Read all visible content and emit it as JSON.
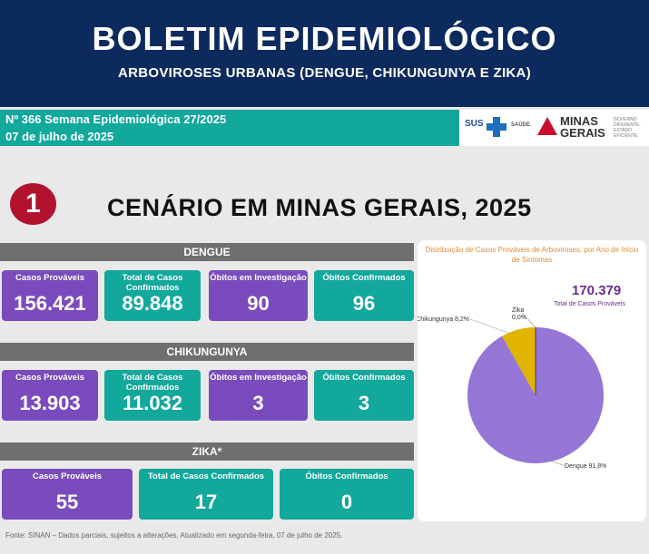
{
  "header": {
    "title": "BOLETIM EPIDEMIOLÓGICO",
    "subtitle": "ARBOVIROSES URBANAS (DENGUE, CHIKUNGUNYA E ZIKA)"
  },
  "issue": {
    "line1": "Nº 366 Semana Epidemiológica 27/2025",
    "line2": "07 de julho de 2025"
  },
  "logos": {
    "sus": "SUS",
    "saude": "SAÚDE",
    "minas": "MINAS",
    "gerais": "GERAIS",
    "tagline": "GOVERNO DIFERENTE. ESTADO EFICIENTE."
  },
  "section": {
    "number": "1",
    "title": "CENÁRIO EM MINAS GERAIS, 2025"
  },
  "dengue": {
    "title": "DENGUE",
    "cards": [
      {
        "label": "Casos Prováveis",
        "value": "156.421"
      },
      {
        "label": "Total de Casos Confirmados",
        "value": "89.848"
      },
      {
        "label": "Óbitos em Investigação",
        "value": "90"
      },
      {
        "label": "Óbitos Confirmados",
        "value": "96"
      }
    ]
  },
  "chik": {
    "title": "CHIKUNGUNYA",
    "cards": [
      {
        "label": "Casos Prováveis",
        "value": "13.903"
      },
      {
        "label": "Total de Casos Confirmados",
        "value": "11.032"
      },
      {
        "label": "Óbitos em Investigação",
        "value": "3"
      },
      {
        "label": "Óbitos Confirmados",
        "value": "3"
      }
    ]
  },
  "zika": {
    "title": "ZIKA*",
    "cards": [
      {
        "label": "Casos Prováveis",
        "value": "55"
      },
      {
        "label": "Total de Casos Confirmados",
        "value": "17"
      },
      {
        "label": "Óbitos Confirmados",
        "value": "0"
      }
    ]
  },
  "chart_data": {
    "type": "pie",
    "title": "Distribuição de Casos Prováveis de Arboviroses, por Ano de Início de Sintomas",
    "total_value": "170.379",
    "total_label": "Total de Casos Prováveis",
    "slices": [
      {
        "name": "Dengue",
        "value": 91.8,
        "label": "Dengue 91,8%",
        "color": "#9575d6"
      },
      {
        "name": "Chikungunya",
        "value": 8.2,
        "label": "Chikungunya 8,2%",
        "color": "#e0b400"
      },
      {
        "name": "Zika",
        "value": 0.0,
        "label": "Zika 0,0%",
        "color": "#444444"
      }
    ]
  },
  "footer": "Fonte: SINAN – Dados parciais, sujeitos a alterações. Atualizado em segunda-feira, 07 de julho de 2025."
}
